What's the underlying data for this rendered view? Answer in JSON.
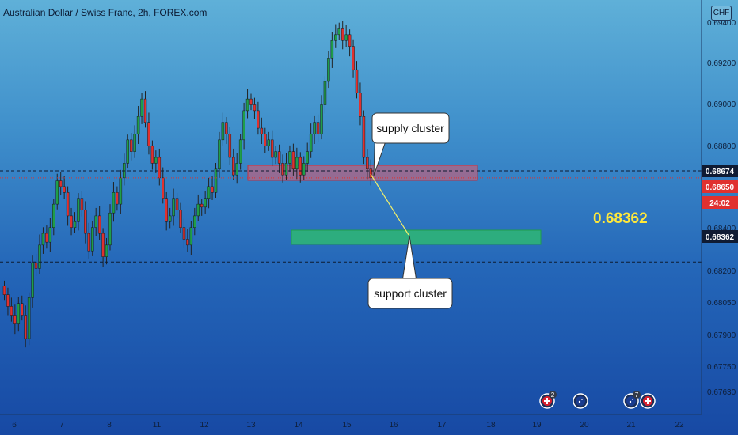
{
  "header": {
    "title": "Australian Dollar / Swiss Franc, 2h, FOREX.com",
    "currency_button": "CHF"
  },
  "annotations": {
    "supply_label": "supply cluster",
    "support_label": "support cluster",
    "target_level": "0.68362"
  },
  "price_scale": {
    "last_price_label": "0.68650",
    "countdown_label": "24:02",
    "supply_line_label": "0.68674",
    "support_line_label": "0.68362"
  },
  "events": [
    {
      "icon": "swiss-flag-icon",
      "badge": "2"
    },
    {
      "icon": "australia-flag-icon",
      "badge": ""
    },
    {
      "icon": "australia-flag-icon",
      "badge": "7"
    },
    {
      "icon": "swiss-flag-icon",
      "badge": ""
    }
  ],
  "colors": {
    "bull": "#1f9e4a",
    "bear": "#e0312f",
    "supply_zone": "#e35a6a",
    "support_zone": "#2fc26a",
    "target_text": "#ffe83a",
    "last_price_bg": "#e0312f",
    "level_label_bg": "#0f1b33"
  },
  "chart_data": {
    "type": "candlestick",
    "title": "Australian Dollar / Swiss Franc, 2h, FOREX.com",
    "y_axis": {
      "ticks": [
        "0.69400",
        "0.69200",
        "0.69000",
        "0.68800",
        "0.68400",
        "0.68200",
        "0.68050",
        "0.67900",
        "0.67750",
        "0.67630"
      ]
    },
    "x_axis": {
      "ticks": [
        "6",
        "7",
        "8",
        "11",
        "12",
        "13",
        "14",
        "15",
        "16",
        "17",
        "18",
        "19",
        "20",
        "21",
        "22"
      ]
    },
    "levels": [
      {
        "name": "supply-line",
        "value": 0.68674
      },
      {
        "name": "last-price-line",
        "value": 0.6865
      },
      {
        "name": "support-line",
        "value": 0.68362
      }
    ],
    "zones": [
      {
        "name": "supply-zone",
        "low": 0.6864,
        "high": 0.6871,
        "from": "13",
        "to": "18"
      },
      {
        "name": "support-zone",
        "low": 0.683,
        "high": 0.6838,
        "from": "14",
        "to": "19"
      }
    ],
    "candles_close": [
      0.6825,
      0.6821,
      0.6818,
      0.6815,
      0.6822,
      0.6818,
      0.681,
      0.6824,
      0.6836,
      0.6834,
      0.6842,
      0.6846,
      0.6843,
      0.6848,
      0.6856,
      0.6864,
      0.6862,
      0.686,
      0.6852,
      0.6848,
      0.685,
      0.6858,
      0.6854,
      0.6846,
      0.684,
      0.6848,
      0.6852,
      0.6846,
      0.6838,
      0.6842,
      0.6853,
      0.686,
      0.6856,
      0.6865,
      0.687,
      0.6878,
      0.6874,
      0.688,
      0.6886,
      0.6892,
      0.6884,
      0.6876,
      0.687,
      0.6872,
      0.6865,
      0.6858,
      0.685,
      0.6852,
      0.6858,
      0.6854,
      0.6848,
      0.6844,
      0.6842,
      0.6848,
      0.6852,
      0.6856,
      0.6855,
      0.6858,
      0.6862,
      0.686,
      0.6868,
      0.6878,
      0.6884,
      0.688,
      0.6872,
      0.6866,
      0.687,
      0.6878,
      0.6888,
      0.6892,
      0.689,
      0.6888,
      0.6882,
      0.688,
      0.6876,
      0.6878,
      0.6872,
      0.6874,
      0.687,
      0.6866,
      0.687,
      0.6874,
      0.6868,
      0.6872,
      0.6866,
      0.687,
      0.6874,
      0.688,
      0.6884,
      0.688,
      0.689,
      0.6898,
      0.6906,
      0.6912,
      0.6914,
      0.6916,
      0.6912,
      0.6914,
      0.691,
      0.6902,
      0.6894,
      0.6886,
      0.6872,
      0.6868,
      0.6865
    ]
  }
}
